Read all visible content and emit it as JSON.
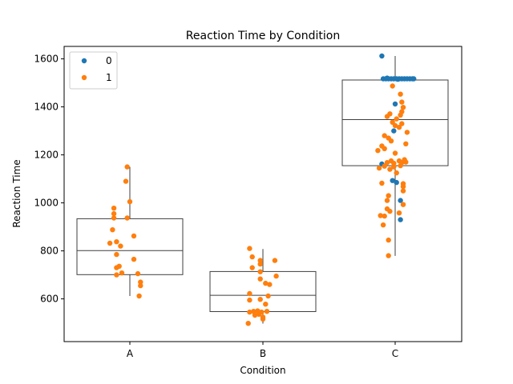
{
  "chart_data": {
    "type": "scatter",
    "title": "Reaction Time by Condition",
    "xlabel": "Condition",
    "ylabel": "Reaction Time",
    "categories": [
      "A",
      "B",
      "C"
    ],
    "ylim": [
      422,
      1652
    ],
    "yticks": [
      600,
      800,
      1000,
      1200,
      1400,
      1600
    ],
    "grid": false,
    "legend": {
      "placement": "top-left",
      "entries": [
        "0",
        "1"
      ]
    },
    "colors": {
      "0": "#1f77b4",
      "1": "#ff7f0e",
      "box": "#3f3f3f"
    },
    "boxplots": [
      {
        "category": "A",
        "whisker_low": 612,
        "q1": 701,
        "median": 801,
        "q3": 934,
        "whisker_high": 1150
      },
      {
        "category": "B",
        "whisker_low": 497,
        "q1": 547,
        "median": 615,
        "q3": 714,
        "whisker_high": 808
      },
      {
        "category": "C",
        "whisker_low": 779,
        "q1": 1155,
        "median": 1347,
        "q3": 1512,
        "whisker_high": 1612
      }
    ],
    "series": [
      {
        "name": "0",
        "points": [
          [
            "C",
            -0.1,
            1612
          ],
          [
            "C",
            -0.09,
            1517
          ],
          [
            "C",
            -0.07,
            1517
          ],
          [
            "C",
            -0.05,
            1517
          ],
          [
            "C",
            -0.03,
            1517
          ],
          [
            "C",
            -0.01,
            1517
          ],
          [
            "C",
            0.01,
            1517
          ],
          [
            "C",
            0.03,
            1517
          ],
          [
            "C",
            0.05,
            1517
          ],
          [
            "C",
            0.07,
            1517
          ],
          [
            "C",
            0.09,
            1517
          ],
          [
            "C",
            0.11,
            1517
          ],
          [
            "C",
            0.13,
            1517
          ],
          [
            "C",
            0.14,
            1517
          ],
          [
            "C",
            -0.06,
            1520
          ],
          [
            "C",
            0.02,
            1515
          ],
          [
            "C",
            0.0,
            1412
          ],
          [
            "C",
            -0.01,
            1300
          ],
          [
            "C",
            -0.1,
            1162
          ],
          [
            "C",
            -0.02,
            1093
          ],
          [
            "C",
            0.01,
            1085
          ],
          [
            "C",
            0.04,
            1010
          ],
          [
            "C",
            0.04,
            930
          ]
        ]
      },
      {
        "name": "1",
        "points": [
          [
            "A",
            -0.02,
            1150
          ],
          [
            "A",
            -0.03,
            1090
          ],
          [
            "A",
            0.0,
            1005
          ],
          [
            "A",
            -0.12,
            978
          ],
          [
            "A",
            -0.12,
            955
          ],
          [
            "A",
            -0.12,
            937
          ],
          [
            "A",
            -0.02,
            937
          ],
          [
            "A",
            -0.13,
            888
          ],
          [
            "A",
            0.03,
            862
          ],
          [
            "A",
            -0.1,
            838
          ],
          [
            "A",
            -0.15,
            832
          ],
          [
            "A",
            -0.07,
            820
          ],
          [
            "A",
            -0.1,
            785
          ],
          [
            "A",
            0.03,
            765
          ],
          [
            "A",
            -0.08,
            736
          ],
          [
            "A",
            -0.1,
            730
          ],
          [
            "A",
            -0.06,
            708
          ],
          [
            "A",
            0.06,
            705
          ],
          [
            "A",
            -0.1,
            700
          ],
          [
            "A",
            0.08,
            670
          ],
          [
            "A",
            0.08,
            655
          ],
          [
            "A",
            0.07,
            612
          ],
          [
            "B",
            -0.1,
            810
          ],
          [
            "B",
            -0.08,
            775
          ],
          [
            "B",
            -0.02,
            760
          ],
          [
            "B",
            0.09,
            760
          ],
          [
            "B",
            -0.02,
            745
          ],
          [
            "B",
            -0.08,
            730
          ],
          [
            "B",
            -0.02,
            713
          ],
          [
            "B",
            0.1,
            695
          ],
          [
            "B",
            -0.02,
            683
          ],
          [
            "B",
            0.02,
            665
          ],
          [
            "B",
            0.05,
            660
          ],
          [
            "B",
            -0.1,
            622
          ],
          [
            "B",
            0.04,
            612
          ],
          [
            "B",
            -0.1,
            595
          ],
          [
            "B",
            -0.02,
            598
          ],
          [
            "B",
            0.02,
            578
          ],
          [
            "B",
            -0.1,
            545
          ],
          [
            "B",
            -0.07,
            548
          ],
          [
            "B",
            -0.04,
            550
          ],
          [
            "B",
            -0.01,
            545
          ],
          [
            "B",
            0.03,
            548
          ],
          [
            "B",
            -0.06,
            532
          ],
          [
            "B",
            -0.03,
            536
          ],
          [
            "B",
            0.0,
            524
          ],
          [
            "B",
            0.0,
            516
          ],
          [
            "B",
            -0.11,
            498
          ],
          [
            "C",
            -0.02,
            1487
          ],
          [
            "C",
            0.04,
            1453
          ],
          [
            "C",
            0.05,
            1420
          ],
          [
            "C",
            0.06,
            1398
          ],
          [
            "C",
            0.05,
            1380
          ],
          [
            "C",
            0.04,
            1366
          ],
          [
            "C",
            -0.06,
            1360
          ],
          [
            "C",
            -0.04,
            1371
          ],
          [
            "C",
            0.01,
            1350
          ],
          [
            "C",
            -0.02,
            1336
          ],
          [
            "C",
            0.05,
            1330
          ],
          [
            "C",
            0.03,
            1315
          ],
          [
            "C",
            0.0,
            1322
          ],
          [
            "C",
            0.09,
            1294
          ],
          [
            "C",
            -0.08,
            1280
          ],
          [
            "C",
            -0.05,
            1270
          ],
          [
            "C",
            -0.03,
            1258
          ],
          [
            "C",
            0.08,
            1246
          ],
          [
            "C",
            -0.1,
            1237
          ],
          [
            "C",
            -0.08,
            1226
          ],
          [
            "C",
            -0.13,
            1218
          ],
          [
            "C",
            0.0,
            1207
          ],
          [
            "C",
            -0.03,
            1175
          ],
          [
            "C",
            0.03,
            1175
          ],
          [
            "C",
            0.07,
            1180
          ],
          [
            "C",
            -0.06,
            1168
          ],
          [
            "C",
            -0.01,
            1165
          ],
          [
            "C",
            0.05,
            1168
          ],
          [
            "C",
            0.08,
            1170
          ],
          [
            "C",
            -0.08,
            1153
          ],
          [
            "C",
            -0.01,
            1150
          ],
          [
            "C",
            0.04,
            1155
          ],
          [
            "C",
            -0.12,
            1145
          ],
          [
            "C",
            -0.04,
            1140
          ],
          [
            "C",
            0.01,
            1125
          ],
          [
            "C",
            0.06,
            1080
          ],
          [
            "C",
            0.06,
            1068
          ],
          [
            "C",
            -0.1,
            1082
          ],
          [
            "C",
            0.06,
            1050
          ],
          [
            "C",
            -0.05,
            1030
          ],
          [
            "C",
            -0.06,
            1010
          ],
          [
            "C",
            0.06,
            993
          ],
          [
            "C",
            -0.06,
            975
          ],
          [
            "C",
            -0.04,
            965
          ],
          [
            "C",
            0.03,
            958
          ],
          [
            "C",
            -0.11,
            947
          ],
          [
            "C",
            -0.08,
            945
          ],
          [
            "C",
            -0.09,
            908
          ],
          [
            "C",
            -0.05,
            845
          ],
          [
            "C",
            -0.05,
            780
          ]
        ]
      }
    ]
  }
}
